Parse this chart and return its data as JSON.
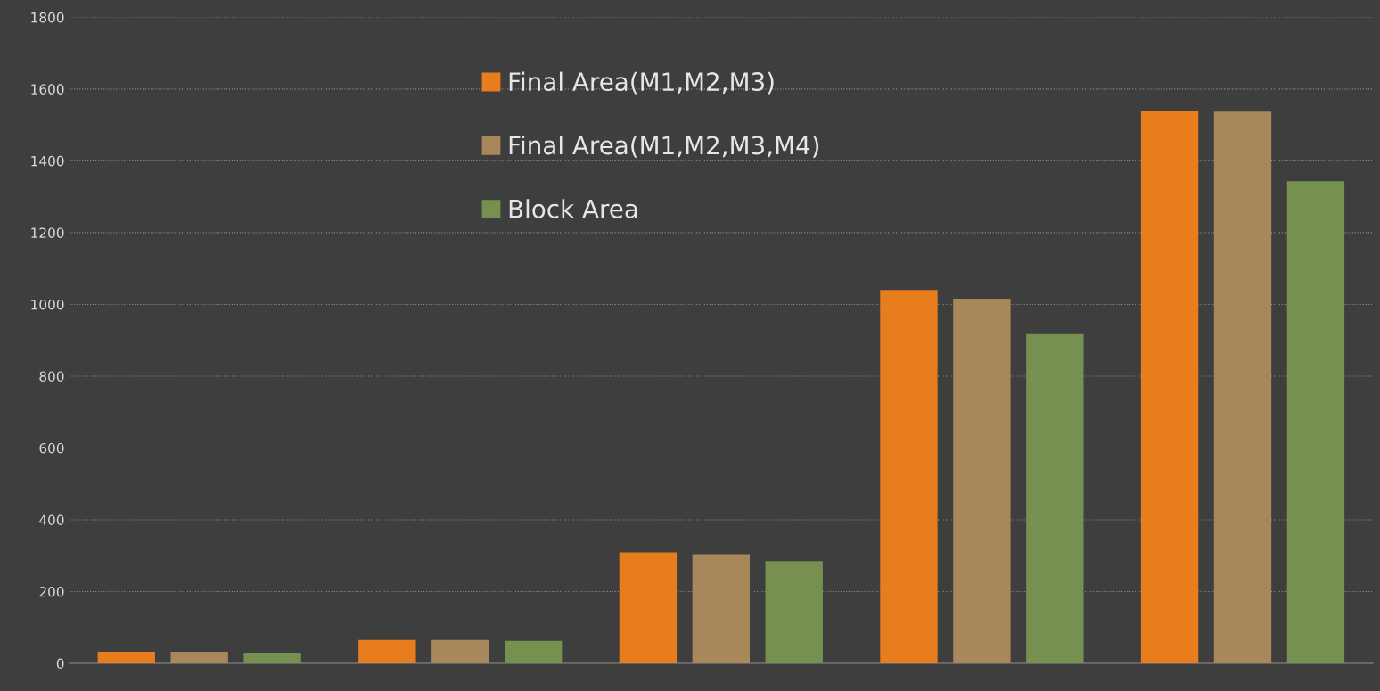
{
  "chart_data": {
    "type": "bar",
    "categories": [
      null,
      null,
      null,
      null,
      null
    ],
    "series": [
      {
        "name": "Final Area(M1,M2,M3)",
        "color": "#e87d1e",
        "values": [
          32,
          65,
          309,
          1040,
          1540
        ]
      },
      {
        "name": "Final Area(M1,M2,M3,M4)",
        "color": "#a8885a",
        "values": [
          32,
          65,
          304,
          1016,
          1537
        ]
      },
      {
        "name": "Block Area",
        "color": "#76904f",
        "values": [
          30,
          63,
          285,
          917,
          1343
        ]
      }
    ],
    "ylim": [
      0,
      1800
    ],
    "yticks": [
      0,
      200,
      400,
      600,
      800,
      1000,
      1200,
      1400,
      1600,
      1800
    ],
    "grid": "y",
    "legend": "top"
  }
}
